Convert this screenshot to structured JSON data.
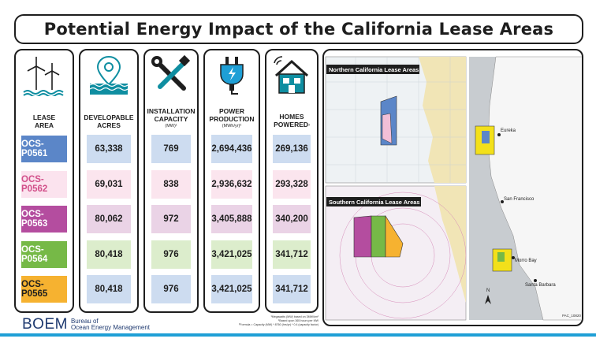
{
  "title": "Potential Energy Impact of the California Lease Areas",
  "columns": {
    "lease": {
      "label1": "LEASE",
      "label2": "AREA",
      "icon": "wind-turbine-icon"
    },
    "acres": {
      "label1": "DEVELOPABLE",
      "label2": "ACRES",
      "icon": "map-pin-waves-icon"
    },
    "capacity": {
      "label1": "INSTALLATION",
      "label2": "CAPACITY",
      "sub": "(MW)¹",
      "icon": "wrench-screwdriver-icon"
    },
    "production": {
      "label1": "POWER",
      "label2": "PRODUCTION",
      "sub": "(MWh/yr)²",
      "icon": "power-plug-icon"
    },
    "homes": {
      "label1": "HOMES",
      "label2": "POWERED",
      "sup": "³",
      "icon": "house-wifi-icon"
    }
  },
  "rows": [
    {
      "lease": "OCS-P0561",
      "acres": "63,338",
      "capacity": "769",
      "production": "2,694,436",
      "homes": "269,136",
      "lease_color": "#5b86c8",
      "lease_text": "#ffffff",
      "tint": "#cddcf0"
    },
    {
      "lease": "OCS-P0562",
      "acres": "69,031",
      "capacity": "838",
      "production": "2,936,632",
      "homes": "293,328",
      "lease_color": "#fbe3ee",
      "lease_text": "#d2508a",
      "tint": "#fbe5ee"
    },
    {
      "lease": "OCS-P0563",
      "acres": "80,062",
      "capacity": "972",
      "production": "3,405,888",
      "homes": "340,200",
      "lease_color": "#b44d9f",
      "lease_text": "#ffffff",
      "tint": "#ead3e6"
    },
    {
      "lease": "OCS-P0564",
      "acres": "80,418",
      "capacity": "976",
      "production": "3,421,025",
      "homes": "341,712",
      "lease_color": "#76b947",
      "lease_text": "#ffffff",
      "tint": "#dcedcc"
    },
    {
      "lease": "OCS-P0565",
      "acres": "80,418",
      "capacity": "976",
      "production": "3,421,025",
      "homes": "341,712",
      "lease_color": "#f6b230",
      "lease_text": "#1e1e1e",
      "tint": "#cddcf0"
    }
  ],
  "footnotes": [
    "¹Megawatts (MW) based on 3MW/km²",
    "²Based upon 365 hours per MW",
    "³Formula = Capacity (MW) * 8760 (hrs/yr) * 0.4 (capacity factor)"
  ],
  "maps": {
    "north_title": "Northern California Lease Areas",
    "south_title": "Southern California Lease Areas",
    "cities": [
      "Eureka",
      "San Francisco",
      "Morro Bay",
      "Santa Barbara"
    ],
    "map_id": "PAC_10820",
    "north_arrow": "N"
  },
  "logo": {
    "wordmark": "BOEM",
    "agency_line1": "Bureau of",
    "agency_line2": "Ocean Energy Management"
  },
  "colors": {
    "border": "#1e1e1e",
    "accent_bar": "#1f9fd6",
    "icon_teal": "#0f8ea1",
    "brand_blue": "#1f3a70"
  }
}
